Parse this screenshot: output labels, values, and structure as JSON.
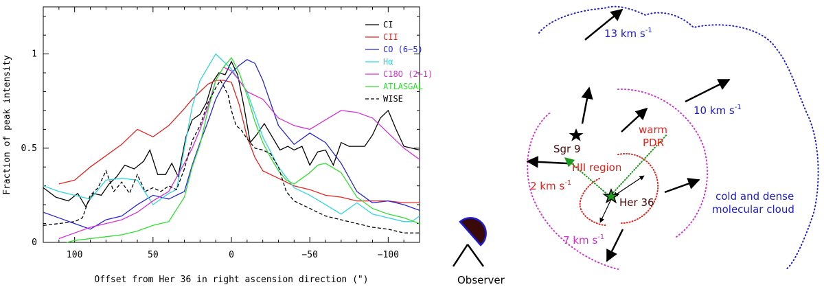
{
  "chart_data": {
    "type": "line",
    "xlabel": "Offset from Her 36 in right ascension direction (\")",
    "ylabel": "Fraction of peak intensity",
    "xlim": [
      120,
      -120
    ],
    "ylim": [
      0,
      1.25
    ],
    "xticks": [
      100,
      50,
      0,
      -50,
      -100
    ],
    "xtick_labels": [
      "100",
      "50",
      "0",
      "−50",
      "−100"
    ],
    "yticks": [
      0,
      0.5,
      1
    ],
    "ytick_labels": [
      "0",
      "0.5",
      "1"
    ],
    "legend_position": "top-right",
    "series": [
      {
        "name": "CI",
        "color": "#000000",
        "dash": "solid",
        "x": [
          120,
          112,
          104,
          98,
          93,
          88,
          83,
          78,
          73,
          68,
          62,
          56,
          52,
          47,
          42,
          38,
          34,
          29,
          25,
          20,
          16,
          12,
          8,
          4,
          0,
          -4,
          -8,
          -12,
          -16,
          -21,
          -26,
          -31,
          -36,
          -40,
          -45,
          -50,
          -55,
          -60,
          -65,
          -70,
          -75,
          -80,
          -85,
          -90,
          -95,
          -100,
          -105,
          -110,
          -115,
          -120
        ],
        "y": [
          0.29,
          0.24,
          0.22,
          0.26,
          0.19,
          0.26,
          0.25,
          0.31,
          0.35,
          0.41,
          0.39,
          0.43,
          0.49,
          0.36,
          0.36,
          0.42,
          0.35,
          0.56,
          0.65,
          0.68,
          0.74,
          0.85,
          0.9,
          0.89,
          0.96,
          0.89,
          0.72,
          0.53,
          0.57,
          0.63,
          0.56,
          0.49,
          0.51,
          0.49,
          0.51,
          0.41,
          0.48,
          0.49,
          0.41,
          0.53,
          0.51,
          0.51,
          0.51,
          0.57,
          0.66,
          0.7,
          0.6,
          0.51,
          0.5,
          0.49
        ]
      },
      {
        "name": "CII",
        "color": "#e8221c",
        "dash": "solid",
        "x": [
          110,
          100,
          90,
          80,
          70,
          60,
          50,
          40,
          30,
          25,
          20,
          15,
          10,
          5,
          0,
          -5,
          -10,
          -15,
          -20,
          -30,
          -40,
          -50,
          -60,
          -70,
          -80,
          -90,
          -100,
          -110,
          -120
        ],
        "y": [
          0.31,
          0.33,
          0.4,
          0.46,
          0.52,
          0.6,
          0.56,
          0.62,
          0.71,
          0.76,
          0.8,
          0.84,
          0.86,
          0.86,
          0.85,
          0.73,
          0.56,
          0.45,
          0.38,
          0.34,
          0.3,
          0.28,
          0.25,
          0.24,
          0.22,
          0.22,
          0.22,
          0.21,
          0.21
        ]
      },
      {
        "name": "CO (6−5)",
        "color": "#2626d6",
        "dash": "solid",
        "x": [
          120,
          110,
          100,
          90,
          80,
          70,
          60,
          50,
          40,
          30,
          25,
          20,
          15,
          10,
          5,
          0,
          -5,
          -10,
          -15,
          -20,
          -30,
          -40,
          -50,
          -60,
          -70,
          -80,
          -90,
          -100,
          -110,
          -120
        ],
        "y": [
          0.16,
          0.13,
          0.1,
          0.07,
          0.12,
          0.14,
          0.2,
          0.25,
          0.23,
          0.27,
          0.41,
          0.53,
          0.64,
          0.76,
          0.84,
          0.9,
          0.94,
          0.97,
          0.95,
          0.86,
          0.62,
          0.52,
          0.58,
          0.53,
          0.42,
          0.27,
          0.21,
          0.22,
          0.2,
          0.17
        ]
      },
      {
        "name": "Hα",
        "color": "#2ed6e0",
        "dash": "solid",
        "x": [
          120,
          110,
          100,
          90,
          80,
          70,
          60,
          50,
          40,
          35,
          30,
          25,
          20,
          15,
          10,
          5,
          0,
          -5,
          -10,
          -15,
          -20,
          -25,
          -30,
          -40,
          -50,
          -60,
          -70,
          -80,
          -90,
          -100,
          -110,
          -115,
          -120
        ],
        "y": [
          0.3,
          0.27,
          0.25,
          0.23,
          0.33,
          0.34,
          0.33,
          0.2,
          0.26,
          0.28,
          0.5,
          0.72,
          0.86,
          0.93,
          1.0,
          0.96,
          0.92,
          0.86,
          0.8,
          0.68,
          0.56,
          0.48,
          0.4,
          0.29,
          0.25,
          0.2,
          0.15,
          0.21,
          0.15,
          0.13,
          0.11,
          0.11,
          0.14
        ]
      },
      {
        "name": "C18O (2−1)",
        "color": "#d62ed6",
        "dash": "solid",
        "x": [
          110,
          100,
          90,
          80,
          70,
          60,
          50,
          40,
          30,
          25,
          20,
          15,
          10,
          5,
          0,
          -5,
          -10,
          -20,
          -30,
          -40,
          -50,
          -60,
          -70,
          -80,
          -90,
          -100,
          -110,
          -120
        ],
        "y": [
          0.02,
          0.05,
          0.08,
          0.1,
          0.12,
          0.16,
          0.22,
          0.27,
          0.42,
          0.5,
          0.6,
          0.72,
          0.86,
          0.93,
          0.91,
          0.86,
          0.8,
          0.76,
          0.66,
          0.62,
          0.6,
          0.65,
          0.7,
          0.69,
          0.66,
          0.58,
          0.5,
          0.44
        ]
      },
      {
        "name": "ATLASGAL",
        "color": "#2ee02e",
        "dash": "solid",
        "x": [
          105,
          100,
          90,
          80,
          70,
          60,
          50,
          40,
          30,
          25,
          20,
          15,
          10,
          5,
          0,
          -5,
          -10,
          -15,
          -20,
          -25,
          -30,
          -35,
          -40,
          -45,
          -50,
          -55,
          -60,
          -70,
          -80,
          -90,
          -100,
          -110,
          -120
        ],
        "y": [
          0.0,
          0.01,
          0.02,
          0.03,
          0.04,
          0.06,
          0.09,
          0.11,
          0.24,
          0.4,
          0.52,
          0.7,
          0.86,
          0.93,
          0.98,
          0.9,
          0.78,
          0.64,
          0.53,
          0.45,
          0.38,
          0.33,
          0.31,
          0.34,
          0.37,
          0.41,
          0.42,
          0.37,
          0.24,
          0.18,
          0.15,
          0.13,
          0.1
        ]
      },
      {
        "name": "WISE",
        "color": "#000000",
        "dash": "dashed",
        "x": [
          120,
          110,
          100,
          95,
          90,
          85,
          80,
          75,
          70,
          65,
          60,
          55,
          50,
          45,
          40,
          35,
          30,
          25,
          20,
          15,
          10,
          7,
          5,
          2,
          0,
          -3,
          -6,
          -10,
          -15,
          -20,
          -25,
          -30,
          -35,
          -40,
          -50,
          -60,
          -70,
          -80,
          -90,
          -100,
          -110,
          -120
        ],
        "y": [
          0.09,
          0.1,
          0.11,
          0.13,
          0.25,
          0.29,
          0.38,
          0.27,
          0.32,
          0.26,
          0.36,
          0.27,
          0.29,
          0.27,
          0.3,
          0.28,
          0.39,
          0.54,
          0.62,
          0.74,
          0.82,
          0.86,
          0.83,
          0.78,
          0.7,
          0.62,
          0.6,
          0.55,
          0.5,
          0.49,
          0.47,
          0.4,
          0.27,
          0.22,
          0.18,
          0.14,
          0.12,
          0.1,
          0.08,
          0.07,
          0.05,
          0.05
        ]
      }
    ]
  },
  "diagram": {
    "arrows": {
      "v13": "13 km s",
      "v10": "10 km s",
      "v2": "2 km s",
      "v7": "7 km s",
      "sup": "-1"
    },
    "labels": {
      "sgr9": "Sgr 9",
      "her36": "Her 36",
      "warm": "warm",
      "pdr": "PDR",
      "hii": "HII region",
      "cloud1": "cold and dense",
      "cloud2": "molecular cloud",
      "observer": "Observer"
    },
    "colors": {
      "blue": "#1c1cd8",
      "red": "#e8221c",
      "magenta": "#d62ed6",
      "green": "#1c9a1c",
      "dark": "#4a0808"
    }
  }
}
